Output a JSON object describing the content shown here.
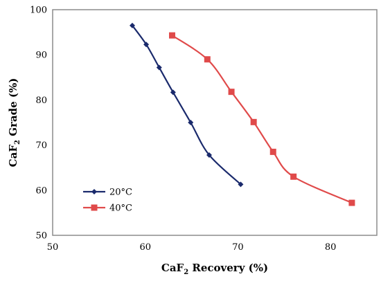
{
  "chart_data": {
    "type": "line",
    "title": "",
    "xlabel": {
      "pre": "CaF",
      "sub": "2",
      "post": " Recovery (%)"
    },
    "ylabel": {
      "pre": "CaF",
      "sub": "2",
      "post": " Grade (%)"
    },
    "xlim": [
      50,
      85
    ],
    "ylim": [
      50,
      100
    ],
    "xticks": [
      50,
      60,
      70,
      80
    ],
    "yticks": [
      50,
      60,
      70,
      80,
      90,
      100
    ],
    "xtick_labels": [
      "50",
      "60",
      "70",
      "80"
    ],
    "ytick_labels": [
      "50",
      "60",
      "70",
      "80",
      "90",
      "100"
    ],
    "grid": false,
    "legend_position": "bottom-left",
    "series": [
      {
        "name": "20°C",
        "color": "#1a2a6c",
        "marker": "diamond",
        "x": [
          58.6,
          60.1,
          61.5,
          63.0,
          64.9,
          66.9,
          70.3
        ],
        "y": [
          96.5,
          92.3,
          87.2,
          81.7,
          75.0,
          67.8,
          61.3
        ]
      },
      {
        "name": "40°C",
        "color": "#e04a4a",
        "marker": "square",
        "x": [
          62.9,
          66.7,
          69.3,
          71.7,
          73.8,
          76.0,
          82.3
        ],
        "y": [
          94.3,
          89.0,
          81.8,
          75.1,
          68.5,
          63.0,
          57.2
        ]
      }
    ]
  }
}
